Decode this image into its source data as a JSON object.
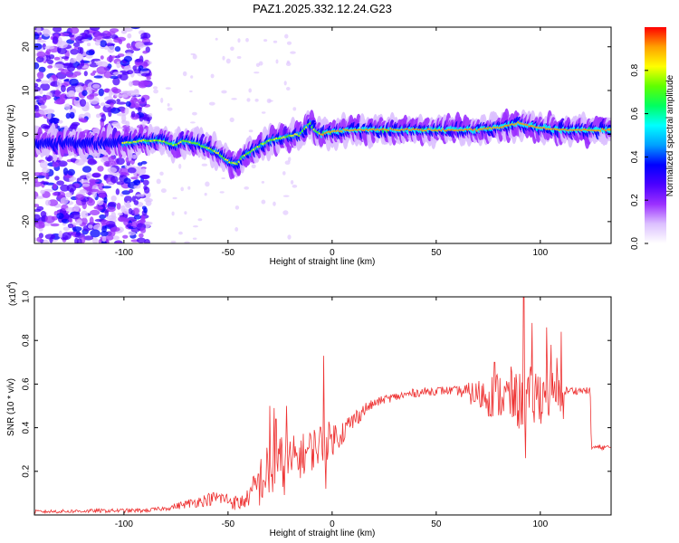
{
  "title": "PAZ1.2025.332.12.24.G23",
  "chart_data": [
    {
      "type": "heatmap",
      "title": "PAZ1.2025.332.12.24.G23",
      "xlabel": "Height of straight line (km)",
      "ylabel": "Frequency (Hz)",
      "xlim": [
        -143,
        134
      ],
      "ylim": [
        -25,
        24.5
      ],
      "xticks": [
        -100,
        -50,
        0,
        50,
        100
      ],
      "xtick_labels": [
        "-100",
        "-50",
        "0",
        "50",
        "100"
      ],
      "yticks": [
        20,
        10,
        0,
        -10,
        -20
      ],
      "ytick_labels": [
        "20",
        "10",
        "0",
        "-10",
        "-20"
      ],
      "colorbar": {
        "label": "Normalized spectral amplitude",
        "range": [
          0,
          1
        ],
        "ticks": [
          0.0,
          0.2,
          0.4,
          0.6,
          0.8
        ],
        "tick_labels": [
          "0.0",
          "0.2",
          "0.4",
          "0.6",
          "0.8"
        ],
        "colors": [
          "#ffffff",
          "#dcc0ff",
          "#9b30ff",
          "#4b00ff",
          "#0000ff",
          "#00a0ff",
          "#00ffff",
          "#00ff60",
          "#60ff00",
          "#ffff00",
          "#ffa000",
          "#ff0000"
        ]
      },
      "ridge": [
        [
          -100,
          -2
        ],
        [
          -90,
          -1.5
        ],
        [
          -80,
          -1.5
        ],
        [
          -75,
          -2.5
        ],
        [
          -70,
          -1.5
        ],
        [
          -65,
          -2
        ],
        [
          -60,
          -3
        ],
        [
          -55,
          -4
        ],
        [
          -50,
          -6
        ],
        [
          -45,
          -7
        ],
        [
          -42,
          -5
        ],
        [
          -38,
          -4
        ],
        [
          -35,
          -3
        ],
        [
          -30,
          -1.5
        ],
        [
          -25,
          -1
        ],
        [
          -20,
          -0.5
        ],
        [
          -15,
          0
        ],
        [
          -12,
          1.5
        ],
        [
          -10,
          2.5
        ],
        [
          -8,
          1
        ],
        [
          -5,
          0
        ],
        [
          0,
          0.5
        ],
        [
          10,
          1
        ],
        [
          40,
          1
        ],
        [
          70,
          1
        ],
        [
          80,
          1.5
        ],
        [
          90,
          2.5
        ],
        [
          100,
          1.5
        ],
        [
          110,
          1
        ],
        [
          134,
          1
        ]
      ]
    },
    {
      "type": "line",
      "xlabel": "Height of straight line (km)",
      "ylabel": "SNR (10 * v/v)",
      "scale_label": "(x10",
      "scale_exp": "4",
      "scale_close": ")",
      "xlim": [
        -143,
        134
      ],
      "ylim": [
        0,
        1.0
      ],
      "xticks": [
        -100,
        -50,
        0,
        50,
        100
      ],
      "xtick_labels": [
        "-100",
        "-50",
        "0",
        "50",
        "100"
      ],
      "yticks": [
        0.2,
        0.4,
        0.6,
        0.8,
        1.0
      ],
      "ytick_labels": [
        "0.2",
        "0.4",
        "0.6",
        "0.8",
        "1.0"
      ],
      "series": [
        {
          "name": "SNR",
          "color": "#ee3333",
          "baseline": [
            [
              -143,
              0.015
            ],
            [
              -100,
              0.02
            ],
            [
              -90,
              0.02
            ],
            [
              -80,
              0.03
            ],
            [
              -70,
              0.05
            ],
            [
              -60,
              0.07
            ],
            [
              -55,
              0.08
            ],
            [
              -50,
              0.07
            ],
            [
              -45,
              0.05
            ],
            [
              -40,
              0.08
            ],
            [
              -35,
              0.15
            ],
            [
              -30,
              0.2
            ],
            [
              -25,
              0.22
            ],
            [
              -20,
              0.24
            ],
            [
              -15,
              0.27
            ],
            [
              -10,
              0.3
            ],
            [
              -5,
              0.33
            ],
            [
              0,
              0.35
            ],
            [
              5,
              0.38
            ],
            [
              10,
              0.43
            ],
            [
              15,
              0.48
            ],
            [
              20,
              0.51
            ],
            [
              25,
              0.53
            ],
            [
              30,
              0.54
            ],
            [
              40,
              0.56
            ],
            [
              50,
              0.57
            ],
            [
              60,
              0.57
            ],
            [
              70,
              0.55
            ],
            [
              80,
              0.55
            ],
            [
              90,
              0.52
            ],
            [
              100,
              0.55
            ],
            [
              110,
              0.55
            ],
            [
              112,
              0.57
            ],
            [
              115,
              0.57
            ],
            [
              124,
              0.57
            ],
            [
              124.5,
              0.31
            ],
            [
              134,
              0.31
            ]
          ],
          "noise": [
            [
              -143,
              0.008
            ],
            [
              -80,
              0.01
            ],
            [
              -60,
              0.03
            ],
            [
              -40,
              0.04
            ],
            [
              -35,
              0.12
            ],
            [
              -25,
              0.15
            ],
            [
              -15,
              0.1
            ],
            [
              -5,
              0.1
            ],
            [
              5,
              0.06
            ],
            [
              20,
              0.02
            ],
            [
              30,
              0.02
            ],
            [
              60,
              0.02
            ],
            [
              68,
              0.06
            ],
            [
              75,
              0.1
            ],
            [
              85,
              0.12
            ],
            [
              95,
              0.15
            ],
            [
              110,
              0.1
            ],
            [
              112,
              0.02
            ],
            [
              134,
              0.01
            ]
          ],
          "spikes": [
            [
              -30,
              0.5
            ],
            [
              -28,
              0.49
            ],
            [
              -27,
              0.44
            ],
            [
              -22,
              0.5
            ],
            [
              -4,
              0.73
            ],
            [
              -3,
              0.12
            ],
            [
              78,
              0.7
            ],
            [
              86,
              0.68
            ],
            [
              92,
              1.0
            ],
            [
              93,
              0.26
            ],
            [
              96,
              0.88
            ],
            [
              103,
              0.86
            ],
            [
              105,
              0.78
            ],
            [
              108,
              0.72
            ],
            [
              110,
              0.84
            ],
            [
              111,
              0.44
            ]
          ]
        }
      ]
    }
  ]
}
